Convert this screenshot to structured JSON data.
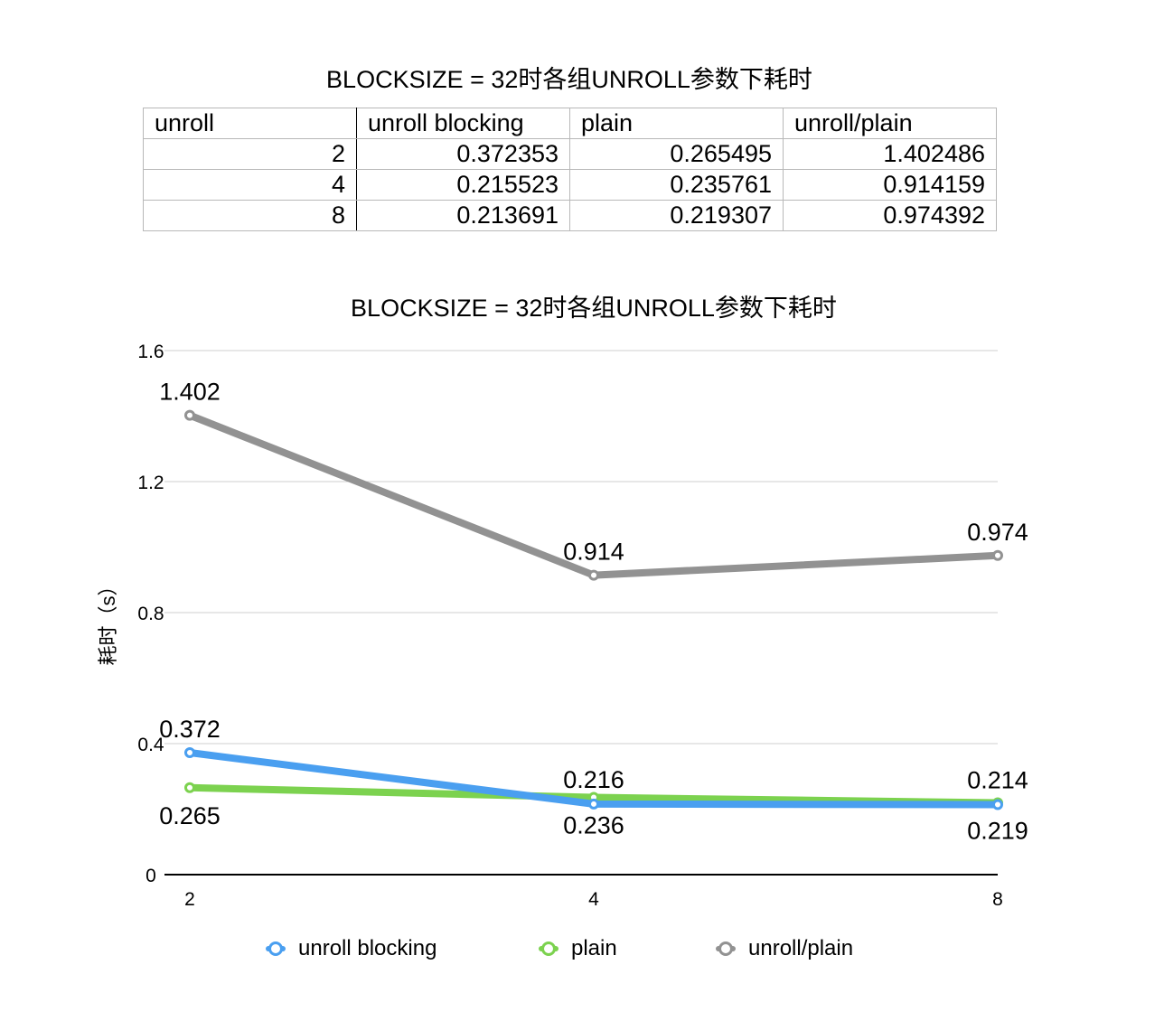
{
  "table": {
    "title": "BLOCKSIZE = 32时各组UNROLL参数下耗时",
    "headers": [
      "unroll",
      "unroll blocking",
      "plain",
      "unroll/plain"
    ],
    "rows": [
      [
        "2",
        "0.372353",
        "0.265495",
        "1.402486"
      ],
      [
        "4",
        "0.215523",
        "0.235761",
        "0.914159"
      ],
      [
        "8",
        "0.213691",
        "0.219307",
        "0.974392"
      ]
    ]
  },
  "chart_data": {
    "type": "line",
    "title": "BLOCKSIZE = 32时各组UNROLL参数下耗时",
    "xlabel": "",
    "ylabel": "耗时（s）",
    "categories": [
      "2",
      "4",
      "8"
    ],
    "ylim": [
      0,
      1.6
    ],
    "yticks": [
      "0",
      "0.4",
      "0.8",
      "1.2",
      "1.6"
    ],
    "grid": true,
    "legend_position": "bottom",
    "series": [
      {
        "name": "unroll blocking",
        "color": "#4a9ff0",
        "values": [
          0.372353,
          0.215523,
          0.213691
        ],
        "labels": [
          "0.372",
          "0.216",
          "0.214"
        ]
      },
      {
        "name": "plain",
        "color": "#7cd24f",
        "values": [
          0.265495,
          0.235761,
          0.219307
        ],
        "labels": [
          "0.265",
          "0.236",
          "0.219"
        ]
      },
      {
        "name": "unroll/plain",
        "color": "#929292",
        "values": [
          1.402486,
          0.914159,
          0.974392
        ],
        "labels": [
          "1.402",
          "0.914",
          "0.974"
        ]
      }
    ]
  }
}
